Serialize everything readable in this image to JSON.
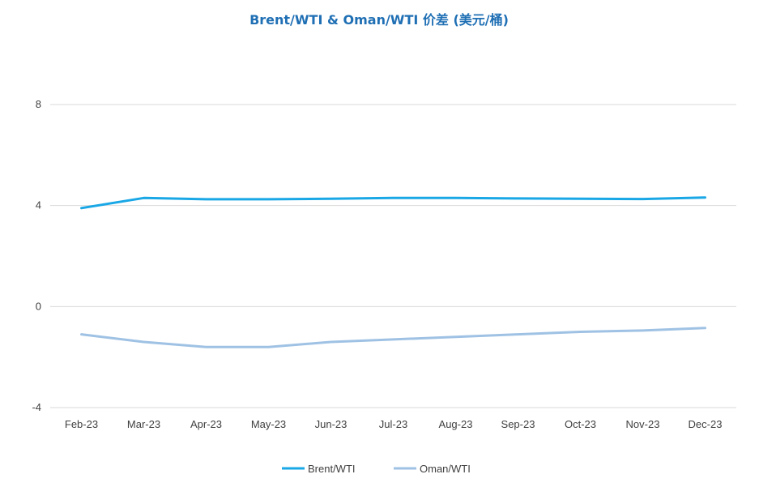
{
  "chart_data": {
    "type": "line",
    "title": "Brent/WTI & Oman/WTI 价差 (美元/桶)",
    "categories": [
      "Feb-23",
      "Mar-23",
      "Apr-23",
      "May-23",
      "Jun-23",
      "Jul-23",
      "Aug-23",
      "Sep-23",
      "Oct-23",
      "Nov-23",
      "Dec-23"
    ],
    "series": [
      {
        "name": "Brent/WTI",
        "color": "#1aa7e6",
        "values": [
          3.9,
          4.3,
          4.25,
          4.25,
          4.27,
          4.3,
          4.3,
          4.28,
          4.27,
          4.26,
          4.32
        ]
      },
      {
        "name": "Oman/WTI",
        "color": "#9fc2e4",
        "values": [
          -1.1,
          -1.4,
          -1.6,
          -1.6,
          -1.4,
          -1.3,
          -1.2,
          -1.1,
          -1.0,
          -0.95,
          -0.85
        ]
      }
    ],
    "ylim": [
      -4,
      10
    ],
    "yticks": [
      8,
      4,
      0,
      -4
    ],
    "grid": true,
    "legend": "bottom",
    "title_color": "#1f6fb4",
    "grid_color": "#d9d9d9"
  }
}
